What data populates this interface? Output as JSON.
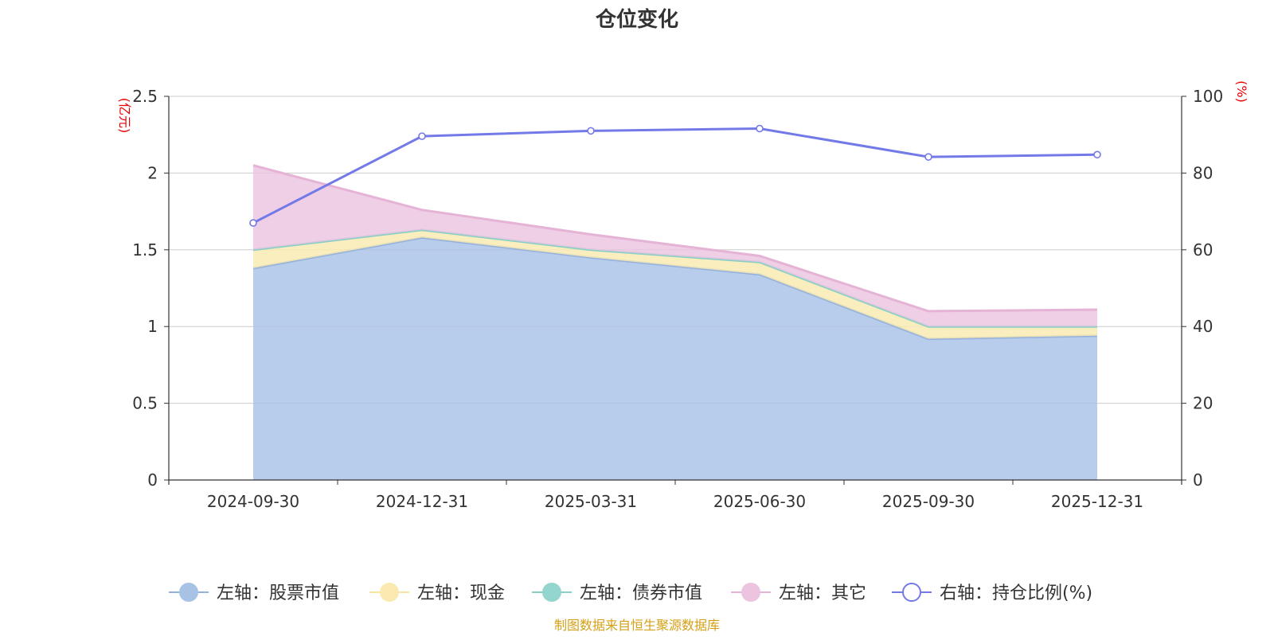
{
  "chart_data": {
    "type": "area",
    "title": "仓位变化",
    "left_unit": "(亿元)",
    "right_unit": "(%)",
    "categories": [
      "2024-09-30",
      "2024-12-31",
      "2025-03-31",
      "2025-06-30",
      "2025-09-30",
      "2025-12-31"
    ],
    "left_axis": {
      "min": 0,
      "max": 2.5,
      "ticks": [
        "0",
        "0.5",
        "1",
        "1.5",
        "2",
        "2.5"
      ],
      "tick_values": [
        0,
        0.5,
        1,
        1.5,
        2,
        2.5
      ]
    },
    "right_axis": {
      "min": 0,
      "max": 100,
      "ticks": [
        "0",
        "20",
        "40",
        "60",
        "80",
        "100"
      ],
      "tick_values": [
        0,
        20,
        40,
        60,
        80,
        100
      ]
    },
    "grid": true,
    "legend_position": "bottom",
    "series": [
      {
        "name": "左轴：股票市值",
        "axis": "left",
        "kind": "stacked-area",
        "color": "#a8c2e6",
        "line": "#93b1dc",
        "values": [
          1.38,
          1.58,
          1.45,
          1.34,
          0.92,
          0.94
        ]
      },
      {
        "name": "左轴：现金",
        "axis": "left",
        "kind": "stacked-area",
        "color": "#faeab0",
        "line": "#f6e4a0",
        "values": [
          0.12,
          0.05,
          0.05,
          0.08,
          0.08,
          0.06
        ]
      },
      {
        "name": "左轴：债券市值",
        "axis": "left",
        "kind": "stacked-area",
        "color": "#95d5d0",
        "line": "#86cfc9",
        "values": [
          0,
          0,
          0,
          0,
          0,
          0
        ]
      },
      {
        "name": "左轴：其它",
        "axis": "left",
        "kind": "stacked-area",
        "color": "#ecc4df",
        "line": "#e5b3d6",
        "values": [
          0.55,
          0.13,
          0.1,
          0.04,
          0.1,
          0.11
        ]
      },
      {
        "name": "右轴：持仓比例(%)",
        "axis": "right",
        "kind": "line",
        "color": "#7479e8",
        "values": [
          67,
          89.6,
          91,
          91.6,
          84.2,
          84.8
        ]
      }
    ],
    "source": "制图数据来自恒生聚源数据库"
  }
}
